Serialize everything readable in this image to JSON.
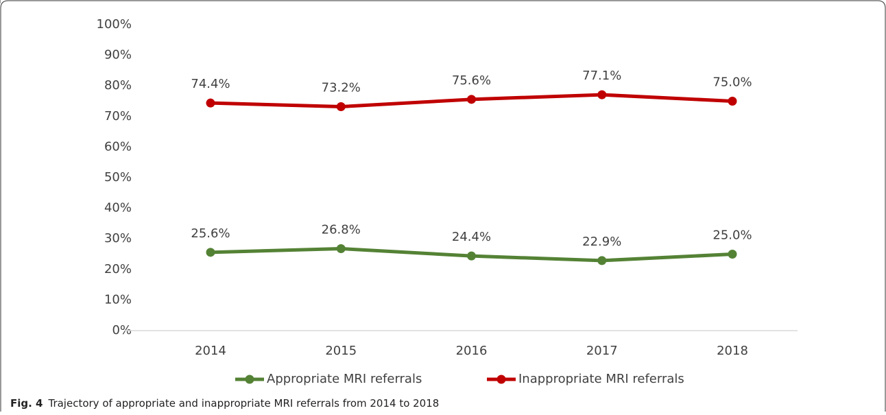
{
  "chart_data": {
    "type": "line",
    "categories": [
      "2014",
      "2015",
      "2016",
      "2017",
      "2018"
    ],
    "series": [
      {
        "name": "Appropriate MRI referrals",
        "color": "#548235",
        "values": [
          25.6,
          26.8,
          24.4,
          22.9,
          25.0
        ],
        "value_labels": [
          "25.6%",
          "26.8%",
          "24.4%",
          "22.9%",
          "25.0%"
        ]
      },
      {
        "name": "Inappropriate MRI referrals",
        "color": "#c00000",
        "values": [
          74.4,
          73.2,
          75.6,
          77.1,
          75.0
        ],
        "value_labels": [
          "74.4%",
          "73.2%",
          "75.6%",
          "77.1%",
          "75.0%"
        ]
      }
    ],
    "ylim": [
      0,
      100
    ],
    "yticks": [
      {
        "value": 0,
        "label": "0%"
      },
      {
        "value": 10,
        "label": "10%"
      },
      {
        "value": 20,
        "label": "20%"
      },
      {
        "value": 30,
        "label": "30%"
      },
      {
        "value": 40,
        "label": "40%"
      },
      {
        "value": 50,
        "label": "50%"
      },
      {
        "value": 60,
        "label": "60%"
      },
      {
        "value": 70,
        "label": "70%"
      },
      {
        "value": 80,
        "label": "80%"
      },
      {
        "value": 90,
        "label": "90%"
      },
      {
        "value": 100,
        "label": "100%"
      }
    ],
    "grid": false,
    "legend": "bottom",
    "caption_label": "Fig. 4",
    "caption": "Trajectory of appropriate and inappropriate MRI referrals from 2014 to 2018"
  }
}
